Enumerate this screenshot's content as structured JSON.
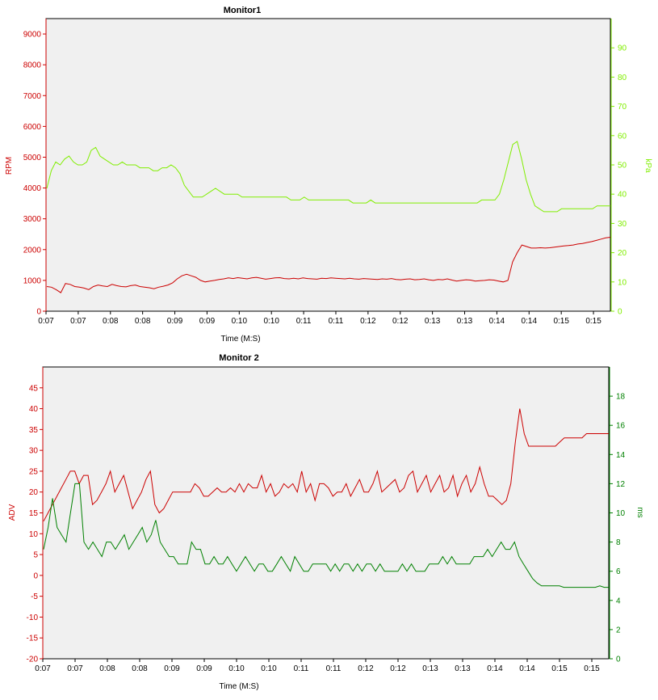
{
  "chart_data": [
    {
      "type": "line",
      "title": "Monitor1",
      "xlabel": "Time (M:S)",
      "x_tick_labels": [
        "0:07",
        "0:07",
        "0:08",
        "0:08",
        "0:09",
        "0:09",
        "0:10",
        "0:10",
        "0:11",
        "0:11",
        "0:12",
        "0:12",
        "0:13",
        "0:13",
        "0:14",
        "0:14",
        "0:15",
        "0:15"
      ],
      "y_left": {
        "label": "RPM",
        "color": "#cc0000",
        "ticks": [
          "0",
          "1000",
          "2000",
          "3000",
          "4000",
          "5000",
          "6000",
          "7000",
          "8000",
          "9000"
        ],
        "ylim": [
          0,
          9500
        ]
      },
      "y_right": {
        "label": "kPa",
        "color": "#80ee00",
        "ticks": [
          "0",
          "10",
          "20",
          "30",
          "40",
          "50",
          "60",
          "70",
          "80",
          "90"
        ],
        "ylim": [
          0,
          100
        ]
      },
      "grid": false,
      "series": [
        {
          "axis": "left",
          "color": "#cc0000",
          "values": [
            800,
            780,
            700,
            600,
            900,
            870,
            800,
            780,
            750,
            700,
            800,
            850,
            820,
            800,
            870,
            830,
            800,
            790,
            830,
            850,
            800,
            780,
            760,
            730,
            780,
            810,
            850,
            920,
            1050,
            1150,
            1200,
            1150,
            1100,
            1000,
            950,
            980,
            1000,
            1030,
            1050,
            1080,
            1060,
            1090,
            1070,
            1050,
            1080,
            1100,
            1070,
            1040,
            1060,
            1080,
            1090,
            1060,
            1050,
            1070,
            1050,
            1080,
            1060,
            1050,
            1040,
            1070,
            1060,
            1080,
            1070,
            1060,
            1050,
            1070,
            1050,
            1040,
            1060,
            1050,
            1040,
            1030,
            1050,
            1040,
            1060,
            1030,
            1020,
            1040,
            1050,
            1020,
            1030,
            1050,
            1020,
            1000,
            1030,
            1020,
            1050,
            1010,
            980,
            1000,
            1020,
            1010,
            980,
            990,
            1000,
            1020,
            1010,
            980,
            950,
            1000,
            1600,
            1900,
            2150,
            2100,
            2050,
            2050,
            2060,
            2050,
            2060,
            2080,
            2100,
            2120,
            2130,
            2150,
            2180,
            2200,
            2230,
            2260,
            2300,
            2340,
            2380,
            2400
          ]
        },
        {
          "axis": "right",
          "color": "#80ee00",
          "values": [
            42,
            48,
            51,
            50,
            52,
            53,
            51,
            50,
            50,
            51,
            55,
            56,
            53,
            52,
            51,
            50,
            50,
            51,
            50,
            50,
            50,
            49,
            49,
            49,
            48,
            48,
            49,
            49,
            50,
            49,
            47,
            43,
            41,
            39,
            39,
            39,
            40,
            41,
            42,
            41,
            40,
            40,
            40,
            40,
            39,
            39,
            39,
            39,
            39,
            39,
            39,
            39,
            39,
            39,
            39,
            38,
            38,
            38,
            39,
            38,
            38,
            38,
            38,
            38,
            38,
            38,
            38,
            38,
            38,
            37,
            37,
            37,
            37,
            38,
            37,
            37,
            37,
            37,
            37,
            37,
            37,
            37,
            37,
            37,
            37,
            37,
            37,
            37,
            37,
            37,
            37,
            37,
            37,
            37,
            37,
            37,
            37,
            37,
            38,
            38,
            38,
            38,
            40,
            45,
            51,
            57,
            58,
            52,
            45,
            40,
            36,
            35,
            34,
            34,
            34,
            34,
            35,
            35,
            35,
            35,
            35,
            35,
            35,
            35,
            36,
            36,
            36,
            36
          ]
        }
      ]
    },
    {
      "type": "line",
      "title": "Monitor 2",
      "xlabel": "Time (M:S)",
      "x_tick_labels": [
        "0:07",
        "0:07",
        "0:08",
        "0:08",
        "0:09",
        "0:09",
        "0:10",
        "0:10",
        "0:11",
        "0:11",
        "0:12",
        "0:12",
        "0:13",
        "0:13",
        "0:14",
        "0:14",
        "0:15",
        "0:15"
      ],
      "y_left": {
        "label": "ADV",
        "color": "#cc0000",
        "ticks": [
          "-20",
          "-15",
          "-10",
          "-5",
          "0",
          "5",
          "10",
          "15",
          "20",
          "25",
          "30",
          "35",
          "40",
          "45"
        ],
        "ylim": [
          -20,
          50
        ]
      },
      "y_right": {
        "label": "ms",
        "color": "#008000",
        "ticks": [
          "0",
          "2",
          "4",
          "6",
          "8",
          "10",
          "12",
          "14",
          "16",
          "18"
        ],
        "ylim": [
          0,
          20
        ]
      },
      "grid": false,
      "series": [
        {
          "axis": "left",
          "color": "#cc0000",
          "values": [
            13,
            15,
            17,
            19,
            21,
            23,
            25,
            25,
            22,
            24,
            24,
            17,
            18,
            20,
            22,
            25,
            20,
            22,
            24,
            20,
            16,
            18,
            20,
            23,
            25,
            17,
            15,
            16,
            18,
            20,
            20,
            20,
            20,
            20,
            22,
            21,
            19,
            19,
            20,
            21,
            20,
            20,
            21,
            20,
            22,
            20,
            22,
            21,
            21,
            24,
            20,
            22,
            19,
            20,
            22,
            21,
            22,
            20,
            25,
            20,
            22,
            18,
            22,
            22,
            21,
            19,
            20,
            20,
            22,
            19,
            21,
            23,
            20,
            20,
            22,
            25,
            20,
            21,
            22,
            23,
            20,
            21,
            24,
            25,
            20,
            22,
            24,
            20,
            22,
            24,
            20,
            21,
            24,
            19,
            22,
            24,
            20,
            22,
            26,
            22,
            19,
            19,
            18,
            17,
            18,
            22,
            32,
            40,
            34,
            31,
            31,
            31,
            31,
            31,
            31,
            31,
            32,
            33,
            33,
            33,
            33,
            33,
            34,
            34,
            34,
            34,
            34,
            34
          ]
        },
        {
          "axis": "right",
          "color": "#008000",
          "values": [
            7.5,
            9,
            11,
            9,
            8.5,
            8,
            10,
            12,
            12,
            8,
            7.5,
            8,
            7.5,
            7,
            8,
            8,
            7.5,
            8,
            8.5,
            7.5,
            8,
            8.5,
            9,
            8,
            8.5,
            9.5,
            8,
            7.5,
            7,
            7,
            6.5,
            6.5,
            6.5,
            8,
            7.5,
            7.5,
            6.5,
            6.5,
            7,
            6.5,
            6.5,
            7,
            6.5,
            6,
            6.5,
            7,
            6.5,
            6,
            6.5,
            6.5,
            6,
            6,
            6.5,
            7,
            6.5,
            6,
            7,
            6.5,
            6,
            6,
            6.5,
            6.5,
            6.5,
            6.5,
            6,
            6.5,
            6,
            6.5,
            6.5,
            6,
            6.5,
            6,
            6.5,
            6.5,
            6,
            6.5,
            6,
            6,
            6,
            6,
            6.5,
            6,
            6.5,
            6,
            6,
            6,
            6.5,
            6.5,
            6.5,
            7,
            6.5,
            7,
            6.5,
            6.5,
            6.5,
            6.5,
            7,
            7,
            7,
            7.5,
            7,
            7.5,
            8,
            7.5,
            7.5,
            8,
            7,
            6.5,
            6,
            5.5,
            5.2,
            5,
            5,
            5,
            5,
            5,
            4.9,
            4.9,
            4.9,
            4.9,
            4.9,
            4.9,
            4.9,
            4.9,
            5,
            4.9,
            4.9
          ]
        }
      ]
    }
  ]
}
